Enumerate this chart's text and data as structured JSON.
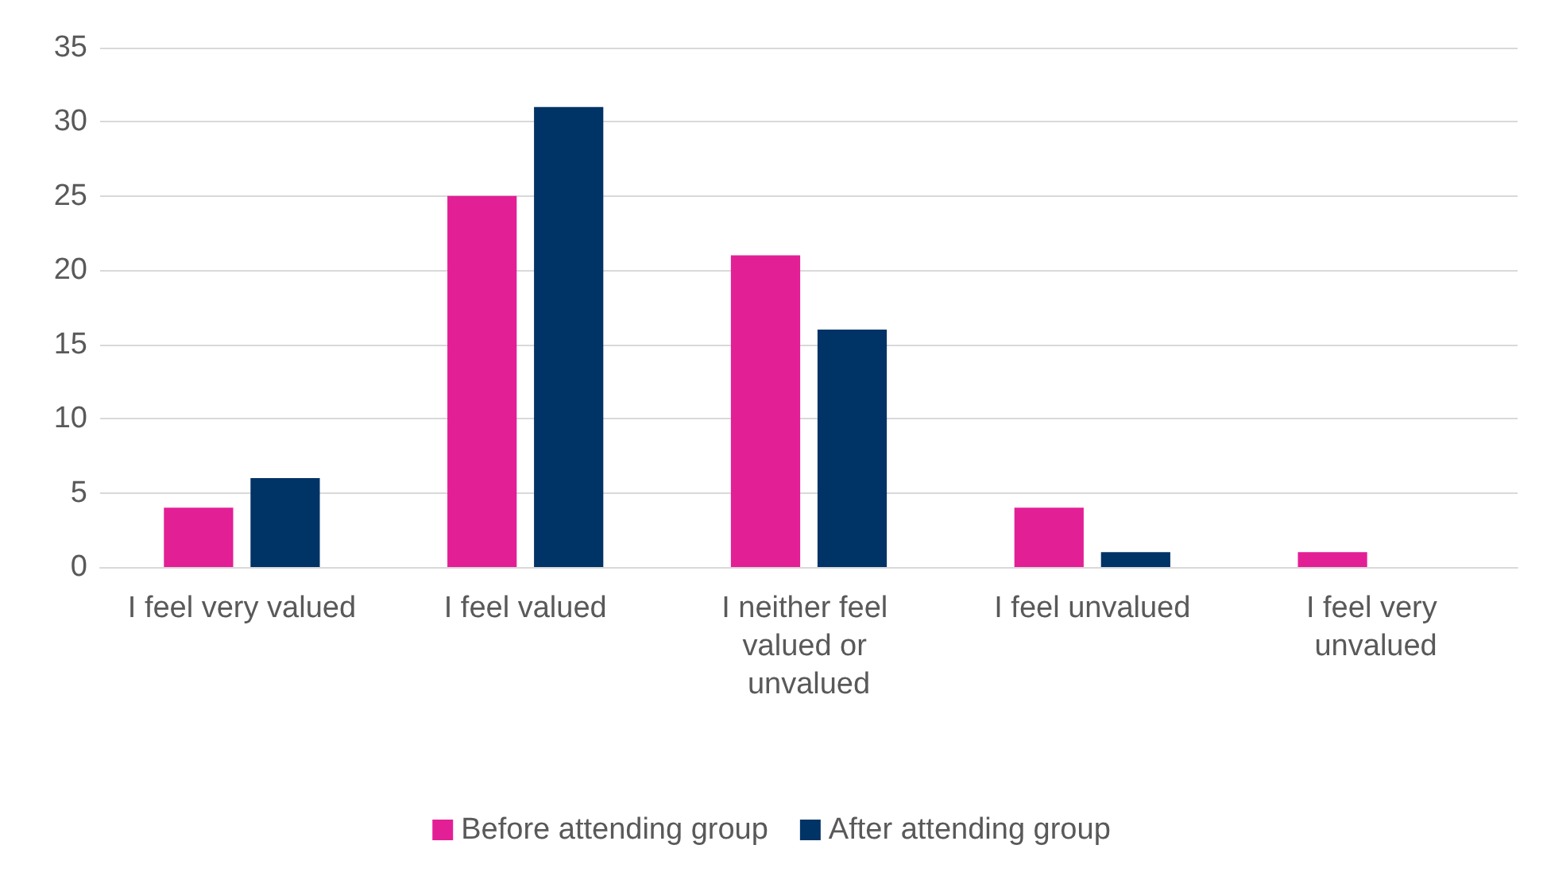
{
  "chart_data": {
    "type": "bar",
    "categories": [
      "I feel very valued",
      "I feel valued",
      "I neither feel valued or unvalued",
      "I feel unvalued",
      "I feel very unvalued"
    ],
    "series": [
      {
        "name": "Before attending group",
        "color": "#e31f96",
        "values": [
          4,
          25,
          21,
          4,
          1
        ]
      },
      {
        "name": "After attending group",
        "color": "#003366",
        "values": [
          6,
          31,
          16,
          1,
          0
        ]
      }
    ],
    "ylim": [
      0,
      35
    ],
    "yticks": [
      0,
      5,
      10,
      15,
      20,
      25,
      30,
      35
    ],
    "grid": "y",
    "legend": "bottom"
  }
}
